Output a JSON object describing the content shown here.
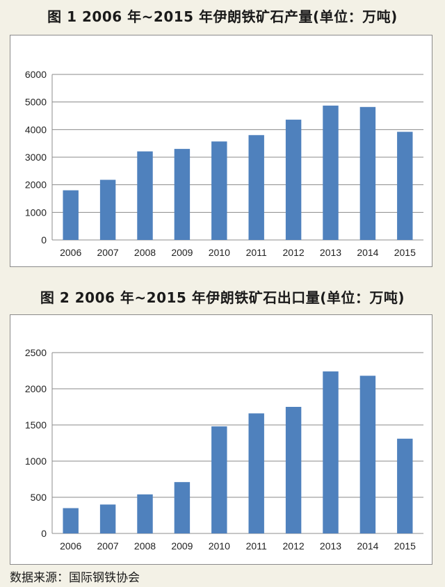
{
  "chart_data": [
    {
      "type": "bar",
      "title": "图 1  2006 年~2015 年伊朗铁矿石产量(单位：万吨)",
      "categories": [
        "2006",
        "2007",
        "2008",
        "2009",
        "2010",
        "2011",
        "2012",
        "2013",
        "2014",
        "2015"
      ],
      "values": [
        1800,
        2180,
        3210,
        3300,
        3570,
        3800,
        4360,
        4870,
        4820,
        3920
      ],
      "ylim": [
        0,
        6000
      ],
      "yticks": [
        0,
        1000,
        2000,
        3000,
        4000,
        5000,
        6000
      ],
      "grid": true,
      "bar_color": "#4f81bd",
      "xlabel": "",
      "ylabel": ""
    },
    {
      "type": "bar",
      "title": "图 2  2006 年~2015 年伊朗铁矿石出口量(单位：万吨)",
      "categories": [
        "2006",
        "2007",
        "2008",
        "2009",
        "2010",
        "2011",
        "2012",
        "2013",
        "2014",
        "2015"
      ],
      "values": [
        350,
        400,
        540,
        710,
        1480,
        1660,
        1750,
        2240,
        2180,
        1310
      ],
      "ylim": [
        0,
        2500
      ],
      "yticks": [
        0,
        500,
        1000,
        1500,
        2000,
        2500
      ],
      "grid": true,
      "bar_color": "#4f81bd",
      "xlabel": "",
      "ylabel": ""
    }
  ],
  "source": "数据来源：国际钢铁协会"
}
